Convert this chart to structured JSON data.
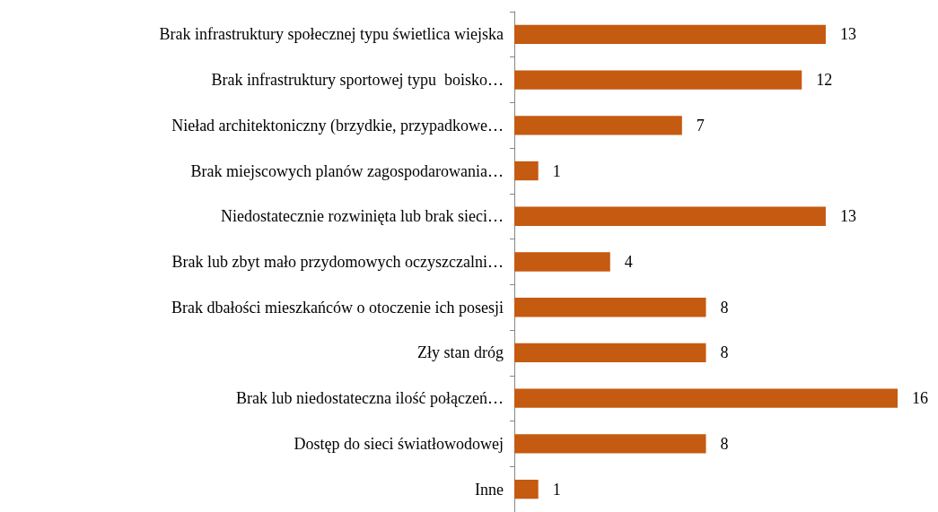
{
  "chart_data": {
    "type": "bar",
    "orientation": "horizontal",
    "categories": [
      "Brak infrastruktury społecznej typu świetlica wiejska",
      "Brak infrastruktury sportowej typu  boisko…",
      "Nieład architektoniczny (brzydkie, przypadkowe…",
      "Brak miejscowych planów zagospodarowania…",
      "Niedostatecznie rozwinięta lub brak sieci…",
      "Brak lub zbyt mało przydomowych oczyszczalni…",
      "Brak dbałości mieszkańców o otoczenie ich posesji",
      "Zły stan dróg",
      "Brak lub niedostateczna ilość połączeń…",
      "Dostęp do sieci światłowodowej",
      "Inne"
    ],
    "values": [
      13,
      12,
      7,
      1,
      13,
      4,
      8,
      8,
      16,
      8,
      1
    ],
    "color": "#c55a11",
    "data_labels": true,
    "grid": false
  }
}
